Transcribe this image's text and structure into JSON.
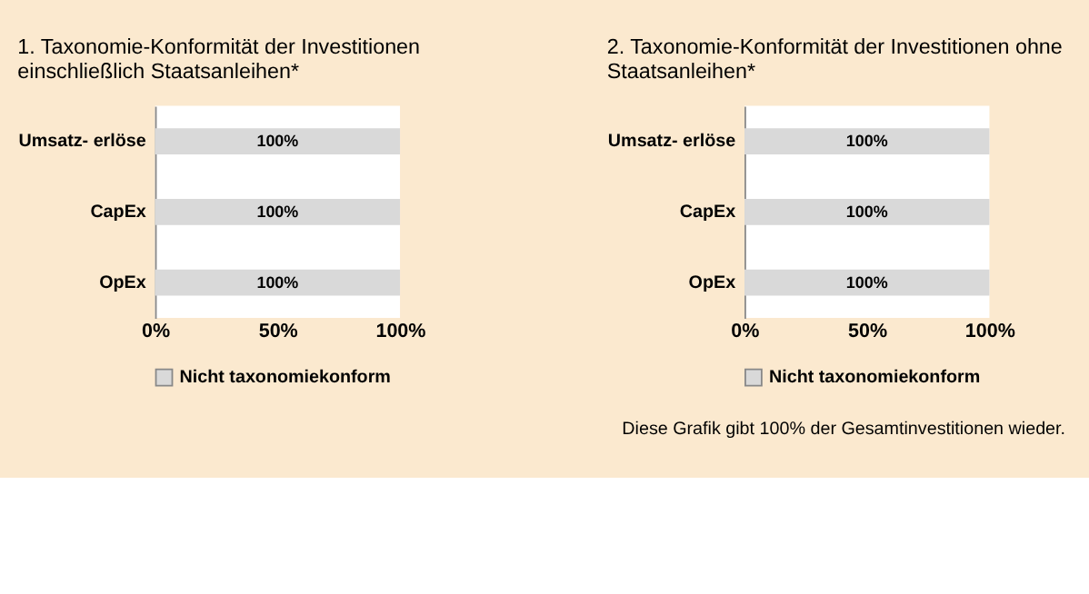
{
  "chart_data": [
    {
      "type": "bar",
      "orientation": "horizontal",
      "title": "1. Taxonomie-Konformität der Investitionen einschließlich Staatsanleihen*",
      "categories": [
        "Umsatz- erlöse",
        "CapEx",
        "OpEx"
      ],
      "series": [
        {
          "name": "Nicht taxonomiekonform",
          "color": "#d9d9d9",
          "values": [
            100,
            100,
            100
          ],
          "value_labels": [
            "100%",
            "100%",
            "100%"
          ]
        }
      ],
      "xlim": [
        0,
        100
      ],
      "xticks": [
        {
          "value": 0,
          "label": "0%"
        },
        {
          "value": 50,
          "label": "50%"
        },
        {
          "value": 100,
          "label": "100%"
        }
      ],
      "legend": "bottom"
    },
    {
      "type": "bar",
      "orientation": "horizontal",
      "title": "2. Taxonomie-Konformität der Investitionen ohne Staatsanleihen*",
      "categories": [
        "Umsatz- erlöse",
        "CapEx",
        "OpEx"
      ],
      "series": [
        {
          "name": "Nicht taxonomiekonform",
          "color": "#d9d9d9",
          "values": [
            100,
            100,
            100
          ],
          "value_labels": [
            "100%",
            "100%",
            "100%"
          ]
        }
      ],
      "xlim": [
        0,
        100
      ],
      "xticks": [
        {
          "value": 0,
          "label": "0%"
        },
        {
          "value": 50,
          "label": "50%"
        },
        {
          "value": 100,
          "label": "100%"
        }
      ],
      "legend": "bottom",
      "annotations": [
        "Diese Grafik gibt  100% der Gesamtinvestitionen wieder."
      ]
    }
  ]
}
